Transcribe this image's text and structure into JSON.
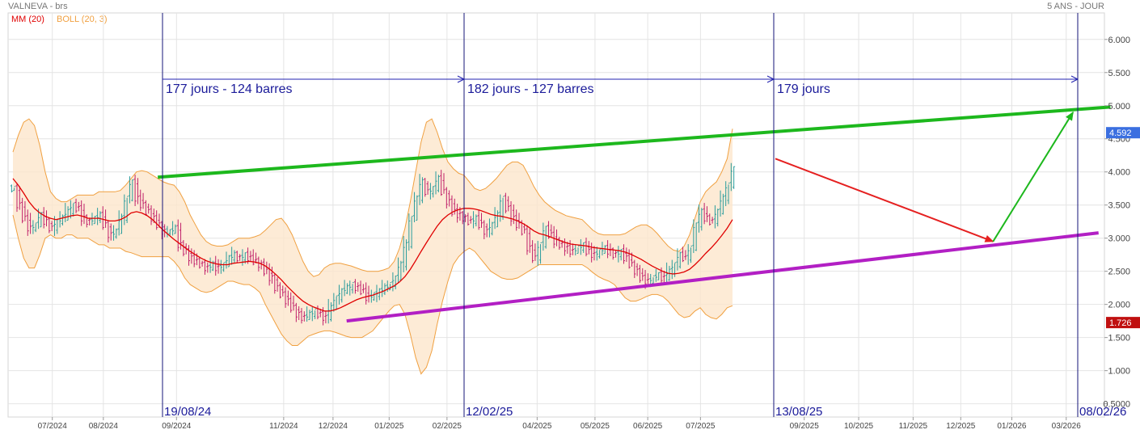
{
  "header": {
    "title": "VALNEVA - brs",
    "period": "5 ANS - JOUR"
  },
  "indicators": {
    "ma_label": "MM (20)",
    "ma_color": "#e00000",
    "boll_label": "BOLL (20, 3)",
    "boll_color": "#f0a040"
  },
  "chart_data": {
    "type": "candlestick",
    "x_axis_ticks": [
      "07/2024",
      "08/2024",
      "09/2024",
      "11/2024",
      "12/2024",
      "01/2025",
      "02/2025",
      "04/2025",
      "05/2025",
      "06/2025",
      "07/2025",
      "09/2025",
      "10/2025",
      "11/2025",
      "12/2025",
      "01/2026",
      "03/2026"
    ],
    "y_axis_ticks": [
      "6.000",
      "5.500",
      "5.000",
      "4.500",
      "4.000",
      "3.500",
      "3.000",
      "2.500",
      "2.000",
      "1.500",
      "1.000",
      "0.5000"
    ],
    "y_range": [
      0.3,
      6.4
    ],
    "price_tags": [
      {
        "label": "4.592",
        "value": 4.592,
        "color": "#3b6fe0"
      },
      {
        "label": "1.726",
        "value": 1.726,
        "color": "#c01010"
      }
    ],
    "closes": [
      3.75,
      3.5,
      3.3,
      3.15,
      3.2,
      3.35,
      3.25,
      3.15,
      3.25,
      3.3,
      3.4,
      3.5,
      3.45,
      3.3,
      3.25,
      3.3,
      3.35,
      3.2,
      3.05,
      3.1,
      3.3,
      3.6,
      3.85,
      3.6,
      3.5,
      3.4,
      3.3,
      3.2,
      3.1,
      3.1,
      3.15,
      2.9,
      2.8,
      2.7,
      2.65,
      2.6,
      2.55,
      2.6,
      2.55,
      2.6,
      2.7,
      2.75,
      2.7,
      2.75,
      2.7,
      2.65,
      2.6,
      2.5,
      2.4,
      2.25,
      2.15,
      2.05,
      1.95,
      1.85,
      1.8,
      1.85,
      1.9,
      1.85,
      1.8,
      1.95,
      2.1,
      2.2,
      2.25,
      2.3,
      2.25,
      2.2,
      2.1,
      2.15,
      2.2,
      2.25,
      2.3,
      2.4,
      2.6,
      2.9,
      3.3,
      3.6,
      3.85,
      3.7,
      3.75,
      3.9,
      3.7,
      3.55,
      3.4,
      3.35,
      3.3,
      3.25,
      3.3,
      3.2,
      3.1,
      3.2,
      3.35,
      3.6,
      3.45,
      3.3,
      3.2,
      3.1,
      2.85,
      2.7,
      2.9,
      3.15,
      3.05,
      2.95,
      2.9,
      2.85,
      2.8,
      2.85,
      2.9,
      2.8,
      2.75,
      2.8,
      2.85,
      2.8,
      2.75,
      2.8,
      2.7,
      2.6,
      2.5,
      2.4,
      2.35,
      2.4,
      2.45,
      2.4,
      2.5,
      2.6,
      2.75,
      2.7,
      2.85,
      3.2,
      3.4,
      3.3,
      3.25,
      3.4,
      3.6,
      3.8,
      4.05
    ],
    "ma20": [
      3.9,
      3.8,
      3.68,
      3.55,
      3.45,
      3.38,
      3.33,
      3.3,
      3.28,
      3.3,
      3.32,
      3.34,
      3.35,
      3.33,
      3.3,
      3.3,
      3.3,
      3.28,
      3.26,
      3.26,
      3.28,
      3.32,
      3.38,
      3.4,
      3.38,
      3.34,
      3.28,
      3.2,
      3.12,
      3.05,
      2.98,
      2.92,
      2.86,
      2.8,
      2.75,
      2.7,
      2.66,
      2.63,
      2.61,
      2.6,
      2.6,
      2.62,
      2.63,
      2.64,
      2.65,
      2.64,
      2.62,
      2.58,
      2.52,
      2.45,
      2.37,
      2.28,
      2.2,
      2.12,
      2.05,
      2.0,
      1.96,
      1.93,
      1.9,
      1.9,
      1.92,
      1.95,
      1.99,
      2.03,
      2.07,
      2.1,
      2.12,
      2.14,
      2.17,
      2.2,
      2.24,
      2.28,
      2.34,
      2.42,
      2.53,
      2.66,
      2.8,
      2.93,
      3.06,
      3.18,
      3.28,
      3.35,
      3.4,
      3.43,
      3.45,
      3.45,
      3.44,
      3.42,
      3.39,
      3.36,
      3.34,
      3.33,
      3.31,
      3.29,
      3.26,
      3.22,
      3.17,
      3.11,
      3.07,
      3.05,
      3.02,
      2.99,
      2.96,
      2.93,
      2.91,
      2.9,
      2.89,
      2.88,
      2.86,
      2.85,
      2.84,
      2.83,
      2.82,
      2.81,
      2.79,
      2.76,
      2.72,
      2.68,
      2.63,
      2.58,
      2.54,
      2.5,
      2.47,
      2.46,
      2.47,
      2.49,
      2.53,
      2.6,
      2.68,
      2.77,
      2.85,
      2.94,
      3.04,
      3.15,
      3.28
    ],
    "boll_upper": [
      4.3,
      4.55,
      4.75,
      4.8,
      4.7,
      4.4,
      4.0,
      3.7,
      3.6,
      3.55,
      3.55,
      3.6,
      3.65,
      3.65,
      3.65,
      3.65,
      3.7,
      3.7,
      3.7,
      3.7,
      3.72,
      3.8,
      3.9,
      4.0,
      4.02,
      4.0,
      3.95,
      3.9,
      3.85,
      3.82,
      3.8,
      3.7,
      3.55,
      3.35,
      3.2,
      3.05,
      2.95,
      2.9,
      2.88,
      2.88,
      2.9,
      2.95,
      3.0,
      3.0,
      3.0,
      3.02,
      3.05,
      3.12,
      3.2,
      3.28,
      3.3,
      3.2,
      3.05,
      2.85,
      2.65,
      2.5,
      2.42,
      2.45,
      2.55,
      2.6,
      2.62,
      2.62,
      2.6,
      2.58,
      2.55,
      2.52,
      2.5,
      2.5,
      2.5,
      2.52,
      2.55,
      2.65,
      2.85,
      3.15,
      3.55,
      4.0,
      4.45,
      4.75,
      4.8,
      4.6,
      4.35,
      4.15,
      4.05,
      3.98,
      3.95,
      3.85,
      3.75,
      3.72,
      3.75,
      3.82,
      3.9,
      4.0,
      4.1,
      4.15,
      4.15,
      4.1,
      3.95,
      3.78,
      3.65,
      3.55,
      3.48,
      3.42,
      3.38,
      3.34,
      3.32,
      3.3,
      3.28,
      3.2,
      3.12,
      3.07,
      3.05,
      3.05,
      3.05,
      3.05,
      3.07,
      3.12,
      3.17,
      3.2,
      3.2,
      3.15,
      3.07,
      2.97,
      2.88,
      2.82,
      2.8,
      2.88,
      3.05,
      3.3,
      3.55,
      3.7,
      3.78,
      3.85,
      4.0,
      4.2,
      4.65
    ],
    "boll_lower": [
      3.35,
      3.0,
      2.7,
      2.55,
      2.55,
      2.75,
      3.0,
      3.05,
      3.0,
      3.0,
      3.05,
      3.05,
      3.0,
      3.0,
      3.0,
      2.95,
      2.9,
      2.9,
      2.85,
      2.85,
      2.85,
      2.8,
      2.78,
      2.75,
      2.72,
      2.72,
      2.72,
      2.72,
      2.72,
      2.72,
      2.65,
      2.55,
      2.4,
      2.3,
      2.25,
      2.2,
      2.18,
      2.2,
      2.25,
      2.3,
      2.35,
      2.35,
      2.32,
      2.3,
      2.3,
      2.25,
      2.18,
      2.0,
      1.85,
      1.7,
      1.55,
      1.45,
      1.38,
      1.38,
      1.45,
      1.52,
      1.55,
      1.58,
      1.6,
      1.6,
      1.58,
      1.55,
      1.52,
      1.5,
      1.5,
      1.5,
      1.55,
      1.6,
      1.7,
      1.8,
      1.9,
      1.98,
      2.0,
      1.85,
      1.55,
      1.2,
      0.95,
      1.05,
      1.3,
      1.7,
      2.05,
      2.35,
      2.6,
      2.72,
      2.8,
      2.85,
      2.8,
      2.7,
      2.6,
      2.5,
      2.45,
      2.4,
      2.38,
      2.38,
      2.4,
      2.45,
      2.5,
      2.55,
      2.6,
      2.6,
      2.6,
      2.6,
      2.6,
      2.6,
      2.6,
      2.6,
      2.6,
      2.55,
      2.48,
      2.42,
      2.38,
      2.35,
      2.3,
      2.2,
      2.1,
      2.05,
      2.05,
      2.08,
      2.12,
      2.15,
      2.15,
      2.12,
      2.05,
      1.95,
      1.85,
      1.8,
      1.82,
      1.9,
      1.95,
      1.85,
      1.8,
      1.78,
      1.85,
      1.95,
      1.98
    ],
    "trendlines": [
      {
        "name": "green",
        "color": "#1db81d",
        "points": [
          [
            "2024-08-16",
            3.92
          ],
          [
            "2026-02-27",
            4.98
          ]
        ]
      },
      {
        "name": "purple",
        "color": "#b21fc4",
        "points": [
          [
            "2024-12-05",
            1.75
          ],
          [
            "2026-02-20",
            3.08
          ]
        ]
      }
    ],
    "arrows": [
      {
        "color": "#e52020",
        "from": [
          "2025-08-14",
          4.2
        ],
        "to": [
          "2025-12-20",
          2.95
        ]
      },
      {
        "color": "#1db81d",
        "from": [
          "2025-12-20",
          2.95
        ],
        "to": [
          "2026-02-05",
          4.9
        ]
      }
    ],
    "vertical_markers": [
      {
        "date": "19/08/24"
      },
      {
        "date": "12/02/25"
      },
      {
        "date": "13/08/25"
      },
      {
        "date": "08/02/26"
      }
    ],
    "cycle_labels": [
      {
        "text": "177 jours - 124 barres",
        "from": "19/08/24",
        "to": "12/02/25"
      },
      {
        "text": "182 jours - 127 barres",
        "from": "12/02/25",
        "to": "13/08/25"
      },
      {
        "text": "179 jours",
        "from": "13/08/25",
        "to": "08/02/26"
      }
    ]
  }
}
